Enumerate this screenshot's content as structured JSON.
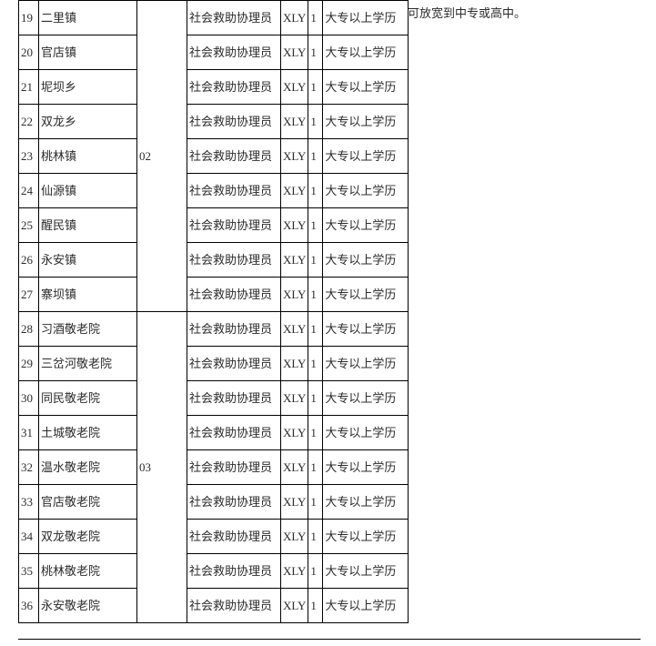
{
  "side_note": "可放宽到中专或高中。",
  "columns": {
    "seq_width": 22,
    "name_width": 108,
    "group_width": 55,
    "job_width": 103,
    "code_width": 29,
    "count_width": 16,
    "edu_width": 94
  },
  "colors": {
    "text": "#2b2b2b",
    "border": "#000000",
    "background": "#ffffff"
  },
  "font": {
    "family": "SimSun",
    "size_pt": 10
  },
  "groups": [
    {
      "id": "02",
      "code": "02",
      "rowspan": 9,
      "covers_seq": [
        19,
        20,
        21,
        22,
        23,
        24,
        25,
        26,
        27
      ]
    },
    {
      "id": "03",
      "code": "03",
      "rowspan": 9,
      "covers_seq": [
        28,
        29,
        30,
        31,
        32,
        33,
        34,
        35,
        36
      ]
    }
  ],
  "rows": [
    {
      "seq": "19",
      "name": "二里镇",
      "group": "02",
      "job": "社会救助协理员",
      "code": "XLY",
      "count": "1",
      "edu": "大专以上学历"
    },
    {
      "seq": "20",
      "name": "官店镇",
      "group": "02",
      "job": "社会救助协理员",
      "code": "XLY",
      "count": "1",
      "edu": "大专以上学历"
    },
    {
      "seq": "21",
      "name": "坭坝乡",
      "group": "02",
      "job": "社会救助协理员",
      "code": "XLY",
      "count": "1",
      "edu": "大专以上学历"
    },
    {
      "seq": "22",
      "name": "双龙乡",
      "group": "02",
      "job": "社会救助协理员",
      "code": "XLY",
      "count": "1",
      "edu": "大专以上学历"
    },
    {
      "seq": "23",
      "name": "桃林镇",
      "group": "02",
      "job": "社会救助协理员",
      "code": "XLY",
      "count": "1",
      "edu": "大专以上学历"
    },
    {
      "seq": "24",
      "name": "仙源镇",
      "group": "02",
      "job": "社会救助协理员",
      "code": "XLY",
      "count": "1",
      "edu": "大专以上学历"
    },
    {
      "seq": "25",
      "name": "醒民镇",
      "group": "02",
      "job": "社会救助协理员",
      "code": "XLY",
      "count": "1",
      "edu": "大专以上学历"
    },
    {
      "seq": "26",
      "name": "永安镇",
      "group": "02",
      "job": "社会救助协理员",
      "code": "XLY",
      "count": "1",
      "edu": "大专以上学历"
    },
    {
      "seq": "27",
      "name": "寨坝镇",
      "group": "02",
      "job": "社会救助协理员",
      "code": "XLY",
      "count": "1",
      "edu": "大专以上学历"
    },
    {
      "seq": "28",
      "name": "习酒敬老院",
      "group": "03",
      "job": "社会救助协理员",
      "code": "XLY",
      "count": "1",
      "edu": "大专以上学历"
    },
    {
      "seq": "29",
      "name": "三岔河敬老院",
      "group": "03",
      "job": "社会救助协理员",
      "code": "XLY",
      "count": "1",
      "edu": "大专以上学历"
    },
    {
      "seq": "30",
      "name": "同民敬老院",
      "group": "03",
      "job": "社会救助协理员",
      "code": "XLY",
      "count": "1",
      "edu": "大专以上学历"
    },
    {
      "seq": "31",
      "name": "土城敬老院",
      "group": "03",
      "job": "社会救助协理员",
      "code": "XLY",
      "count": "1",
      "edu": "大专以上学历"
    },
    {
      "seq": "32",
      "name": "温水敬老院",
      "group": "03",
      "job": "社会救助协理员",
      "code": "XLY",
      "count": "1",
      "edu": "大专以上学历"
    },
    {
      "seq": "33",
      "name": "官店敬老院",
      "group": "03",
      "job": "社会救助协理员",
      "code": "XLY",
      "count": "1",
      "edu": "大专以上学历"
    },
    {
      "seq": "34",
      "name": "双龙敬老院",
      "group": "03",
      "job": "社会救助协理员",
      "code": "XLY",
      "count": "1",
      "edu": "大专以上学历"
    },
    {
      "seq": "35",
      "name": "桃林敬老院",
      "group": "03",
      "job": "社会救助协理员",
      "code": "XLY",
      "count": "1",
      "edu": "大专以上学历"
    },
    {
      "seq": "36",
      "name": "永安敬老院",
      "group": "03",
      "job": "社会救助协理员",
      "code": "XLY",
      "count": "1",
      "edu": "大专以上学历"
    }
  ]
}
